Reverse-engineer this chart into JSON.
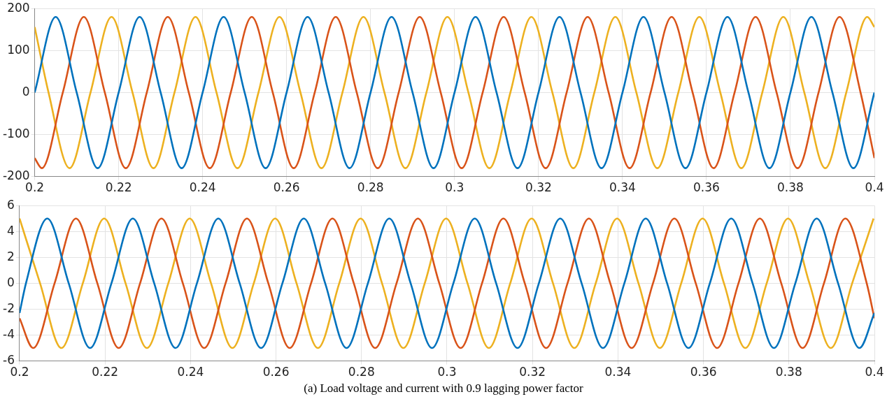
{
  "chart_data": [
    {
      "type": "line",
      "xlim": [
        0.2,
        0.4
      ],
      "xticks": [
        0.2,
        0.22,
        0.24,
        0.26,
        0.28,
        0.3,
        0.32,
        0.34,
        0.36,
        0.38,
        0.4
      ],
      "ylim": [
        -200,
        200
      ],
      "yticks": [
        -200,
        -100,
        0,
        100,
        200
      ],
      "grid": true,
      "marker": "none",
      "line_style": "solid",
      "series": [
        {
          "color": "#0072bd",
          "x": [
            0.2,
            0.205,
            0.21,
            0.215,
            0.22,
            0.225,
            0.23,
            0.235,
            0.24,
            0.245,
            0.25,
            0.255,
            0.26,
            0.265,
            0.27,
            0.275,
            0.28,
            0.285,
            0.29,
            0.295,
            0.3,
            0.305,
            0.31,
            0.315,
            0.32,
            0.325,
            0.33,
            0.335,
            0.34,
            0.345,
            0.35,
            0.355,
            0.36,
            0.365,
            0.37,
            0.375,
            0.38,
            0.385,
            0.39,
            0.395,
            0.4
          ],
          "values": [
            0,
            180,
            0,
            -180,
            0,
            180,
            0,
            -180,
            0,
            180,
            0,
            -180,
            0,
            180,
            0,
            -180,
            0,
            180,
            0,
            -180,
            0,
            180,
            0,
            -180,
            0,
            180,
            0,
            -180,
            0,
            180,
            0,
            -180,
            0,
            180,
            0,
            -180,
            0,
            180,
            0,
            -180,
            0
          ]
        },
        {
          "color": "#d95319",
          "x": [
            0.2,
            0.2017,
            0.2067,
            0.2117,
            0.2167,
            0.2217,
            0.2267,
            0.2317,
            0.2367,
            0.2417,
            0.2467,
            0.2517,
            0.2567,
            0.2617,
            0.2667,
            0.2717,
            0.2767,
            0.2817,
            0.2867,
            0.2917,
            0.2967,
            0.3017,
            0.3067,
            0.3117,
            0.3167,
            0.3217,
            0.3267,
            0.3317,
            0.3367,
            0.3417,
            0.3467,
            0.3517,
            0.3567,
            0.3617,
            0.3667,
            0.3717,
            0.3767,
            0.3817,
            0.3867,
            0.3917,
            0.3967,
            0.4
          ],
          "values": [
            -156,
            -180,
            0,
            180,
            0,
            -180,
            0,
            180,
            0,
            -180,
            0,
            180,
            0,
            -180,
            0,
            180,
            0,
            -180,
            0,
            180,
            0,
            -180,
            0,
            180,
            0,
            -180,
            0,
            180,
            0,
            -180,
            0,
            180,
            0,
            -180,
            0,
            180,
            0,
            -180,
            0,
            180,
            0,
            -156
          ]
        },
        {
          "color": "#edb120",
          "x": [
            0.2,
            0.2033,
            0.2083,
            0.2133,
            0.2183,
            0.2233,
            0.2283,
            0.2333,
            0.2383,
            0.2433,
            0.2483,
            0.2533,
            0.2583,
            0.2633,
            0.2683,
            0.2733,
            0.2783,
            0.2833,
            0.2883,
            0.2933,
            0.2983,
            0.3033,
            0.3083,
            0.3133,
            0.3183,
            0.3233,
            0.3283,
            0.3333,
            0.3383,
            0.3433,
            0.3483,
            0.3533,
            0.3583,
            0.3633,
            0.3683,
            0.3733,
            0.3783,
            0.3833,
            0.3883,
            0.3933,
            0.3983,
            0.4
          ],
          "values": [
            156,
            0,
            -180,
            0,
            180,
            0,
            -180,
            0,
            180,
            0,
            -180,
            0,
            180,
            0,
            -180,
            0,
            180,
            0,
            -180,
            0,
            180,
            0,
            -180,
            0,
            180,
            0,
            -180,
            0,
            180,
            0,
            -180,
            0,
            180,
            0,
            -180,
            0,
            180,
            0,
            -180,
            0,
            180,
            156
          ]
        }
      ]
    },
    {
      "type": "line",
      "xlim": [
        0.2,
        0.4
      ],
      "xticks": [
        0.2,
        0.22,
        0.24,
        0.26,
        0.28,
        0.3,
        0.32,
        0.34,
        0.36,
        0.38,
        0.4
      ],
      "ylim": [
        -6,
        6
      ],
      "yticks": [
        -6,
        -4,
        -2,
        0,
        2,
        4,
        6
      ],
      "grid": true,
      "marker": "none",
      "line_style": "solid",
      "annotations": [
        "(a) Load voltage and current with 0.9 lagging power factor"
      ],
      "series": [
        {
          "color": "#0072bd",
          "x": [
            0.2,
            0.2015,
            0.2065,
            0.2115,
            0.2165,
            0.2215,
            0.2265,
            0.2315,
            0.2365,
            0.2415,
            0.2465,
            0.2515,
            0.2565,
            0.2615,
            0.2665,
            0.2715,
            0.2765,
            0.2815,
            0.2865,
            0.2915,
            0.2965,
            0.3015,
            0.3065,
            0.3115,
            0.3165,
            0.3215,
            0.3265,
            0.3315,
            0.3365,
            0.3415,
            0.3465,
            0.3515,
            0.3565,
            0.3615,
            0.3665,
            0.3715,
            0.3765,
            0.3815,
            0.3865,
            0.3915,
            0.3965,
            0.4
          ],
          "values": [
            -2.3,
            0,
            5,
            0,
            -5,
            0,
            5,
            0,
            -5,
            0,
            5,
            0,
            -5,
            0,
            5,
            0,
            -5,
            0,
            5,
            0,
            -5,
            0,
            5,
            0,
            -5,
            0,
            5,
            0,
            -5,
            0,
            5,
            0,
            -5,
            0,
            5,
            0,
            -5,
            0,
            5,
            0,
            -5,
            -2.3
          ]
        },
        {
          "color": "#d95319",
          "x": [
            0.2,
            0.2032,
            0.2082,
            0.2132,
            0.2182,
            0.2232,
            0.2282,
            0.2332,
            0.2382,
            0.2432,
            0.2482,
            0.2532,
            0.2582,
            0.2632,
            0.2682,
            0.2732,
            0.2782,
            0.2832,
            0.2882,
            0.2932,
            0.2982,
            0.3032,
            0.3082,
            0.3132,
            0.3182,
            0.3232,
            0.3282,
            0.3332,
            0.3382,
            0.3432,
            0.3482,
            0.3532,
            0.3582,
            0.3632,
            0.3682,
            0.3732,
            0.3782,
            0.3832,
            0.3882,
            0.3932,
            0.3982,
            0.4
          ],
          "values": [
            -2.7,
            -5,
            0,
            5,
            0,
            -5,
            0,
            5,
            0,
            -5,
            0,
            5,
            0,
            -5,
            0,
            5,
            0,
            -5,
            0,
            5,
            0,
            -5,
            0,
            5,
            0,
            -5,
            0,
            5,
            0,
            -5,
            0,
            5,
            0,
            -5,
            0,
            5,
            0,
            -5,
            0,
            5,
            0,
            -2.7
          ]
        },
        {
          "color": "#edb120",
          "x": [
            0.2,
            0.2048,
            0.2098,
            0.2148,
            0.2198,
            0.2248,
            0.2298,
            0.2348,
            0.2398,
            0.2448,
            0.2498,
            0.2548,
            0.2598,
            0.2648,
            0.2698,
            0.2748,
            0.2798,
            0.2848,
            0.2898,
            0.2948,
            0.2998,
            0.3048,
            0.3098,
            0.3148,
            0.3198,
            0.3248,
            0.3298,
            0.3348,
            0.3398,
            0.3448,
            0.3498,
            0.3548,
            0.3598,
            0.3648,
            0.3698,
            0.3748,
            0.3798,
            0.3848,
            0.3898,
            0.3948,
            0.3998
          ],
          "values": [
            5,
            0,
            -5,
            0,
            5,
            0,
            -5,
            0,
            5,
            0,
            -5,
            0,
            5,
            0,
            -5,
            0,
            5,
            0,
            -5,
            0,
            5,
            0,
            -5,
            0,
            5,
            0,
            -5,
            0,
            5,
            0,
            -5,
            0,
            5,
            0,
            -5,
            0,
            5,
            0,
            -5,
            0,
            5
          ]
        }
      ]
    }
  ]
}
